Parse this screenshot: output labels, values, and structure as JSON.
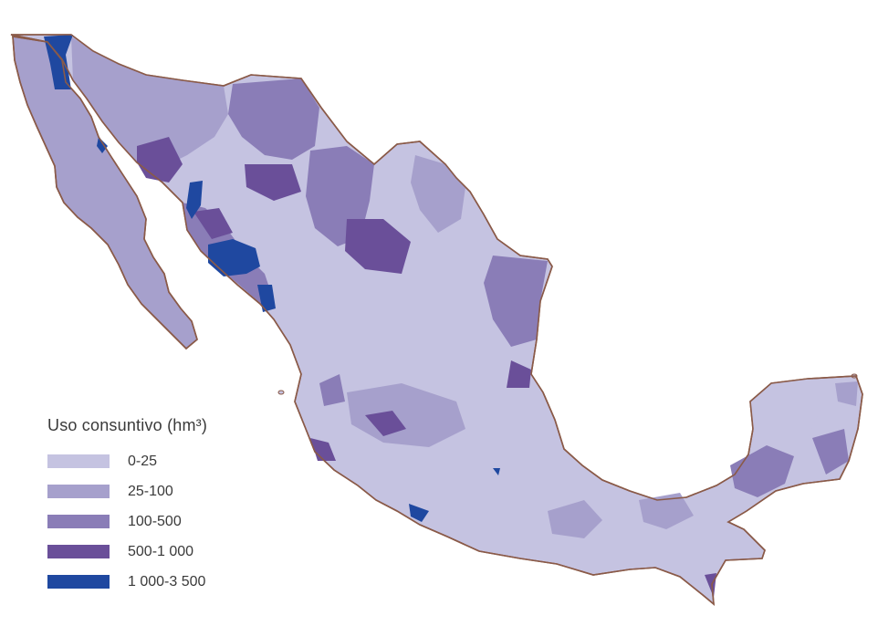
{
  "legend": {
    "title": "Uso consuntivo (hm³)",
    "items": [
      {
        "label": "0-25",
        "color": "#c5c3e1"
      },
      {
        "label": "25-100",
        "color": "#a6a0cc"
      },
      {
        "label": "100-500",
        "color": "#8a7db7"
      },
      {
        "label": "500-1 000",
        "color": "#6a4f99"
      },
      {
        "label": "1 000-3 500",
        "color": "#1f48a0"
      }
    ]
  },
  "map": {
    "border_color": "#8a5a48"
  }
}
